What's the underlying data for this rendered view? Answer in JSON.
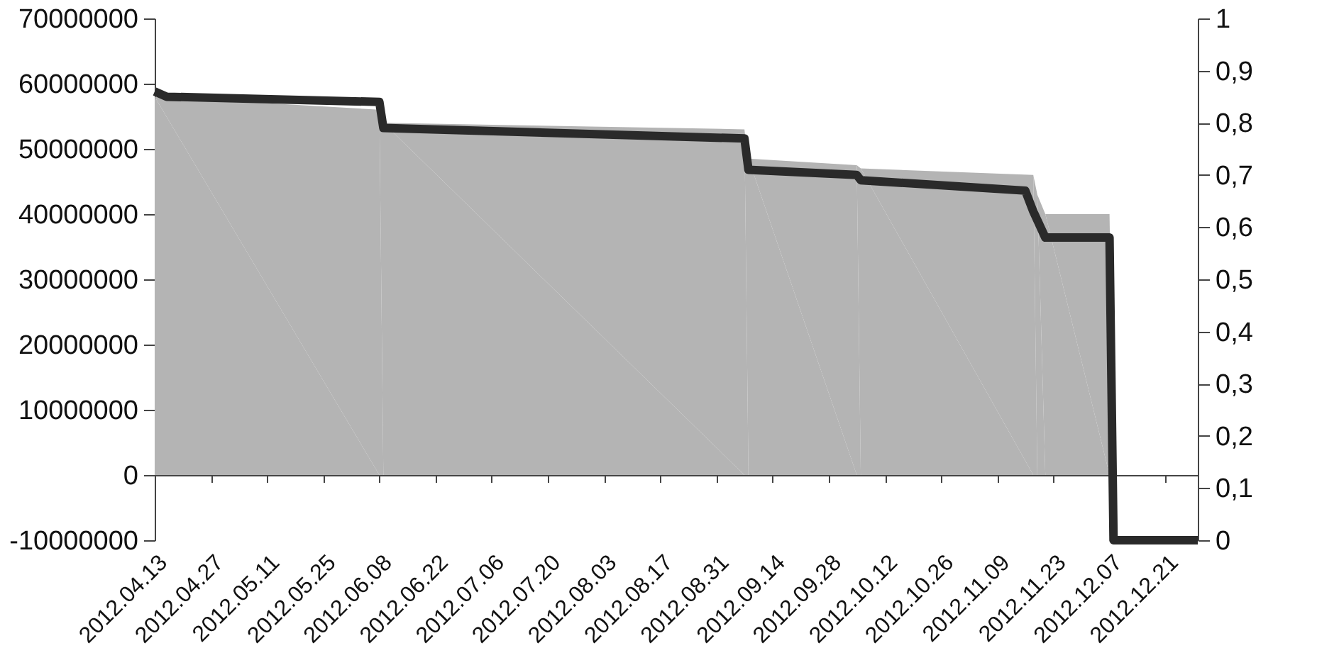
{
  "chart_data": {
    "type": "area",
    "xlim": [
      "2012-04-13",
      "2012-12-29"
    ],
    "xticks": [
      {
        "value": "2012-04-13",
        "label": "2012.04.13"
      },
      {
        "value": "2012-04-27",
        "label": "2012.04.27"
      },
      {
        "value": "2012-05-11",
        "label": "2012.05.11"
      },
      {
        "value": "2012-05-25",
        "label": "2012.05.25"
      },
      {
        "value": "2012-06-08",
        "label": "2012.06.08"
      },
      {
        "value": "2012-06-22",
        "label": "2012.06.22"
      },
      {
        "value": "2012-07-06",
        "label": "2012.07.06"
      },
      {
        "value": "2012-07-20",
        "label": "2012.07.20"
      },
      {
        "value": "2012-08-03",
        "label": "2012.08.03"
      },
      {
        "value": "2012-08-17",
        "label": "2012.08.17"
      },
      {
        "value": "2012-08-31",
        "label": "2012.08.31"
      },
      {
        "value": "2012-09-14",
        "label": "2012.09.14"
      },
      {
        "value": "2012-09-28",
        "label": "2012.09.28"
      },
      {
        "value": "2012-10-12",
        "label": "2012.10.12"
      },
      {
        "value": "2012-10-26",
        "label": "2012.10.26"
      },
      {
        "value": "2012-11-09",
        "label": "2012.11.09"
      },
      {
        "value": "2012-11-23",
        "label": "2012.11.23"
      },
      {
        "value": "2012-12-07",
        "label": "2012.12.07"
      },
      {
        "value": "2012-12-21",
        "label": "2012.12.21"
      }
    ],
    "ylim": [
      -10000000,
      70000000
    ],
    "yticks": [
      -10000000,
      0,
      10000000,
      20000000,
      30000000,
      40000000,
      50000000,
      60000000,
      70000000
    ],
    "y2lim": [
      0,
      1
    ],
    "y2ticks": [
      0,
      {
        "value": 0.1,
        "label": "0,1"
      },
      {
        "value": 0.2,
        "label": "0,2"
      },
      {
        "value": 0.3,
        "label": "0,3"
      },
      {
        "value": 0.4,
        "label": "0,4"
      },
      {
        "value": 0.5,
        "label": "0,5"
      },
      {
        "value": 0.6,
        "label": "0,6"
      },
      {
        "value": 0.7,
        "label": "0,7"
      },
      {
        "value": 0.8,
        "label": "0,8"
      },
      {
        "value": 0.9,
        "label": "0,9"
      },
      1
    ],
    "series": [
      {
        "color": "#b4b4b4",
        "x": [
          "2012-04-13",
          "2012-06-08",
          "2012-06-09",
          "2012-09-07",
          "2012-09-08",
          "2012-10-05",
          "2012-10-06",
          "2012-11-18",
          "2012-11-19",
          "2012-11-21",
          "2012-12-07",
          "2012-12-08",
          "2012-12-29"
        ],
        "values": [
          58000000,
          56000000,
          54000000,
          53000000,
          48500000,
          47500000,
          47000000,
          46000000,
          43000000,
          40000000,
          40000000,
          0,
          0
        ]
      },
      {
        "type": "line",
        "axis": "y2",
        "color": "#2a2a2a",
        "line_style": "solid",
        "x": [
          "2012-04-13",
          "2012-04-16",
          "2012-06-08",
          "2012-06-09",
          "2012-09-07",
          "2012-09-08",
          "2012-10-05",
          "2012-10-06",
          "2012-11-16",
          "2012-11-18",
          "2012-11-21",
          "2012-12-07",
          "2012-12-08",
          "2012-12-29"
        ],
        "values": [
          0.86,
          0.85,
          0.84,
          0.79,
          0.77,
          0.71,
          0.7,
          0.69,
          0.67,
          0.63,
          0.58,
          0.58,
          0,
          0
        ]
      }
    ]
  }
}
